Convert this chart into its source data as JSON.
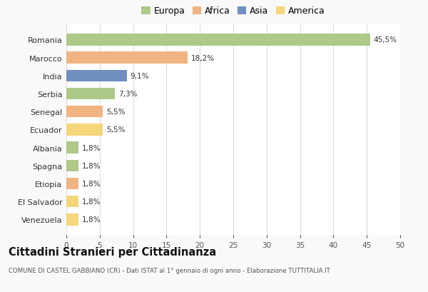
{
  "categories": [
    "Romania",
    "Marocco",
    "India",
    "Serbia",
    "Senegal",
    "Ecuador",
    "Albania",
    "Spagna",
    "Etiopia",
    "El Salvador",
    "Venezuela"
  ],
  "values": [
    45.5,
    18.2,
    9.1,
    7.3,
    5.5,
    5.5,
    1.8,
    1.8,
    1.8,
    1.8,
    1.8
  ],
  "labels": [
    "45,5%",
    "18,2%",
    "9,1%",
    "7,3%",
    "5,5%",
    "5,5%",
    "1,8%",
    "1,8%",
    "1,8%",
    "1,8%",
    "1,8%"
  ],
  "colors": [
    "#aec98a",
    "#f0b482",
    "#6f8fbf",
    "#aec98a",
    "#f0b482",
    "#f5d67a",
    "#aec98a",
    "#aec98a",
    "#f0b482",
    "#f5d67a",
    "#f5d67a"
  ],
  "legend_labels": [
    "Europa",
    "Africa",
    "Asia",
    "America"
  ],
  "legend_colors": [
    "#aec98a",
    "#f0b482",
    "#6f8fbf",
    "#f5d67a"
  ],
  "title": "Cittadini Stranieri per Cittadinanza",
  "subtitle": "COMUNE DI CASTEL GABBIANO (CR) - Dati ISTAT al 1° gennaio di ogni anno - Elaborazione TUTTITALIA.IT",
  "xlim": [
    0,
    50
  ],
  "xticks": [
    0,
    5,
    10,
    15,
    20,
    25,
    30,
    35,
    40,
    45,
    50
  ],
  "background_color": "#f9f9f9",
  "bar_background": "#ffffff",
  "grid_color": "#dddddd",
  "bar_height": 0.65
}
